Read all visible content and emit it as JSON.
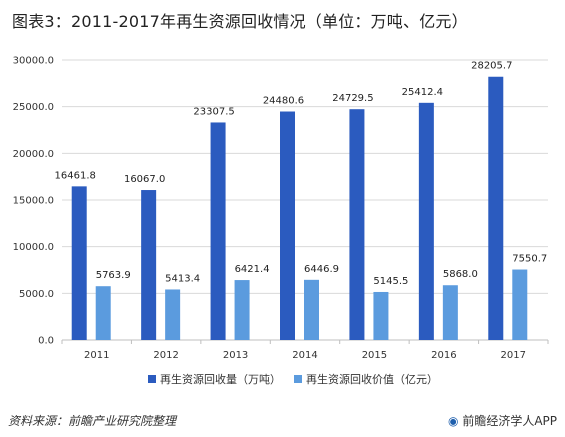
{
  "title": "图表3：2011-2017年再生资源回收情况（单位：万吨、亿元）",
  "footer": {
    "source": "资料来源：前瞻产业研究院整理",
    "brand": "前瞻经济学人APP"
  },
  "colors": {
    "series1": "#2b5bbf",
    "series2": "#5b9bde",
    "grid": "#d9d9d9",
    "axis": "#bfbfbf"
  },
  "chart_data": {
    "type": "bar",
    "categories": [
      "2011",
      "2012",
      "2013",
      "2014",
      "2015",
      "2016",
      "2017"
    ],
    "series": [
      {
        "name": "再生资源回收量（万吨）",
        "values": [
          16461.8,
          16067.0,
          23307.5,
          24480.6,
          24729.5,
          25412.4,
          28205.7
        ],
        "labels": [
          "16461.8",
          "16067.0",
          "23307.5",
          "24480.6",
          "24729.5",
          "25412.4",
          "28205.7"
        ]
      },
      {
        "name": "再生资源回收价值（亿元）",
        "values": [
          5763.9,
          5413.4,
          6421.4,
          6446.9,
          5145.5,
          5868.0,
          7550.7
        ],
        "labels": [
          "5763.9",
          "5413.4",
          "6421.4",
          "6446.9",
          "5145.5",
          "5868.0",
          "7550.7"
        ]
      }
    ],
    "yticks": [
      "0.0",
      "5000.0",
      "10000.0",
      "15000.0",
      "20000.0",
      "25000.0",
      "30000.0"
    ],
    "ylim": [
      0,
      30000
    ],
    "grid": true,
    "legend_position": "bottom"
  }
}
